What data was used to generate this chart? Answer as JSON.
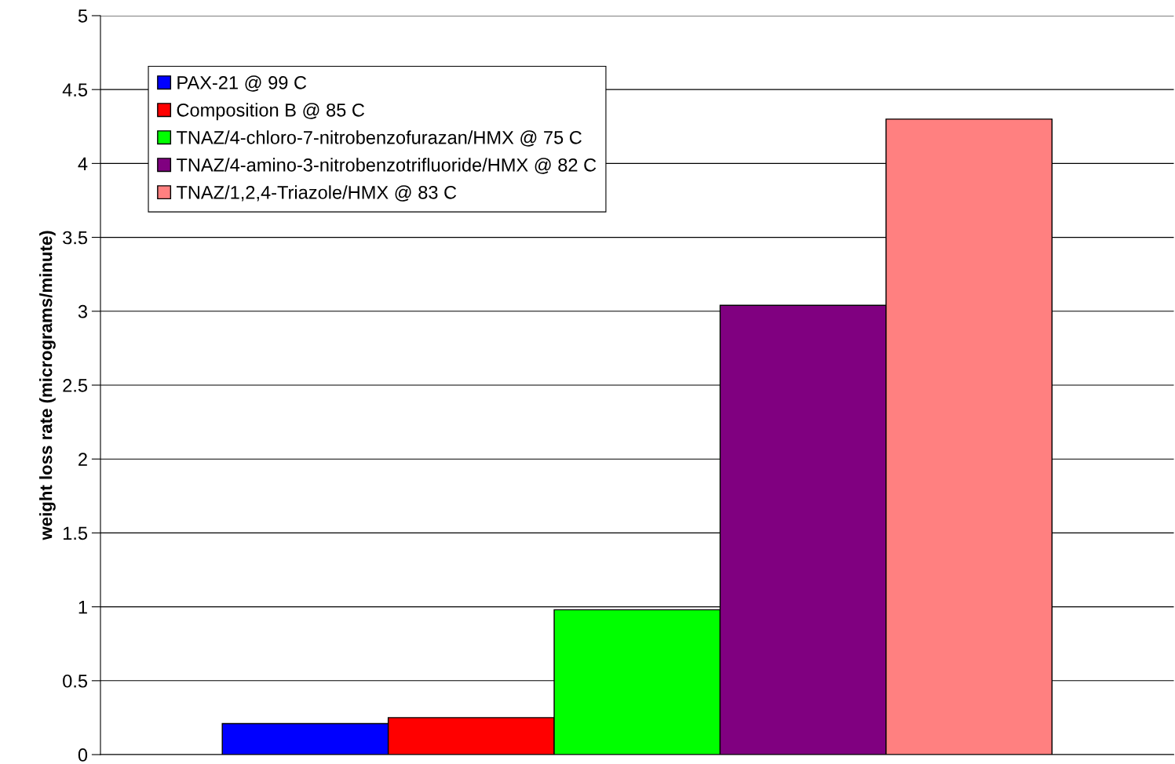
{
  "chart_data": {
    "type": "bar",
    "ylabel": "weight loss rate (micrograms/minute)",
    "categories": [
      null
    ],
    "series": [
      {
        "name": "PAX-21 @ 99 C",
        "color": "#0000ff",
        "values": [
          0.21
        ]
      },
      {
        "name": "Composition B @ 85 C",
        "color": "#ff0000",
        "values": [
          0.25
        ]
      },
      {
        "name": "TNAZ/4-chloro-7-nitrobenzofurazan/HMX @ 75 C",
        "color": "#00ff00",
        "values": [
          0.98
        ]
      },
      {
        "name": "TNAZ/4-amino-3-nitrobenzotrifluoride/HMX @ 82 C",
        "color": "#800080",
        "values": [
          3.04
        ]
      },
      {
        "name": "TNAZ/1,2,4-Triazole/HMX @ 83 C",
        "color": "#ff8080",
        "values": [
          4.3
        ]
      }
    ],
    "ylim": [
      0,
      5
    ],
    "yticks": [
      0,
      0.5,
      1,
      1.5,
      2,
      2.5,
      3,
      3.5,
      4,
      4.5,
      5
    ],
    "grid": "y",
    "legend": "top left"
  }
}
